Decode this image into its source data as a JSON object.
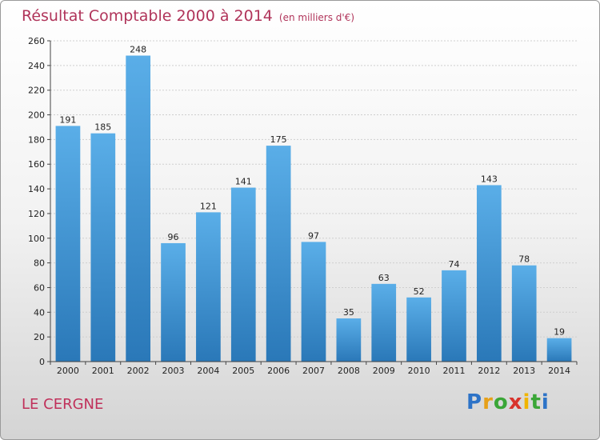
{
  "chart_data": {
    "type": "bar",
    "title": "Résultat Comptable 2000 à 2014",
    "subtitle": "(en milliers d'€)",
    "categories": [
      "2000",
      "2001",
      "2002",
      "2003",
      "2004",
      "2005",
      "2006",
      "2007",
      "2008",
      "2009",
      "2010",
      "2011",
      "2012",
      "2013",
      "2014"
    ],
    "values": [
      191,
      185,
      248,
      96,
      121,
      141,
      175,
      97,
      35,
      63,
      52,
      74,
      143,
      78,
      19
    ],
    "ylim": [
      0,
      260
    ],
    "yticks": [
      0,
      20,
      40,
      60,
      80,
      100,
      120,
      140,
      160,
      180,
      200,
      220,
      240,
      260
    ],
    "xlabel": "",
    "ylabel": "",
    "grid": true,
    "bar_color": "#3d96d8"
  },
  "footer": {
    "place": "LE CERGNE",
    "logo_letters": [
      "P",
      "r",
      "o",
      "x",
      "i",
      "t",
      "i"
    ],
    "logo_colors": [
      "#2d73c7",
      "#e6a019",
      "#3aa637",
      "#d8332c",
      "#f0b400",
      "#3aa637",
      "#2d73c7"
    ]
  }
}
